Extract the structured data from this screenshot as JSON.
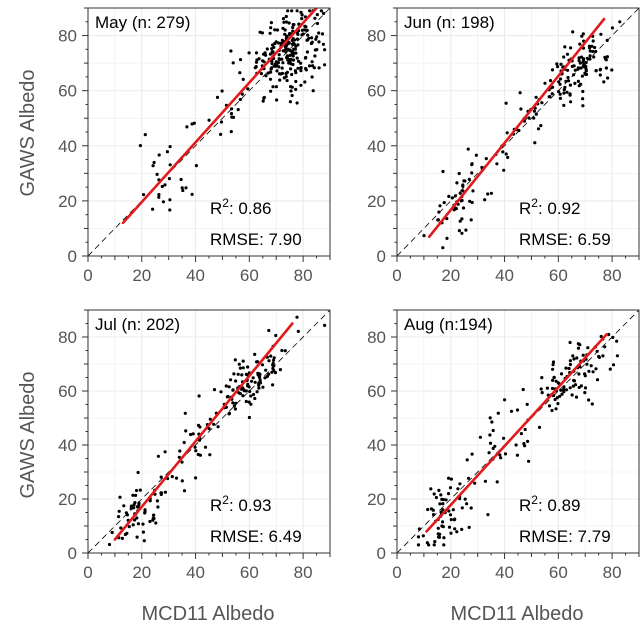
{
  "colors": {
    "fit": "#e31a1c",
    "points": "#000000",
    "grid": "#ebebeb",
    "frame": "#333333"
  },
  "xlabel": "MCD11 Albedo",
  "ylabel": "GAWS Albedo",
  "chart_data": [
    {
      "type": "scatter",
      "title": "May (n: 279)",
      "r2_label": "R",
      "r2_exp": "2",
      "r2_value": ": 0.86",
      "rmse": "RMSE: 7.90",
      "xlim": [
        0,
        90
      ],
      "ylim": [
        0,
        90
      ],
      "xticks": [
        "0",
        "20",
        "40",
        "60",
        "80"
      ],
      "yticks": [
        "0",
        "20",
        "40",
        "60",
        "80"
      ],
      "fit": {
        "x": [
          13,
          85
        ],
        "y": [
          12,
          90
        ]
      },
      "point_groups": [
        {
          "n": 220,
          "cx": 75,
          "cy": 75,
          "sx": 6,
          "sy": 7,
          "rho": 0.3
        },
        {
          "n": 30,
          "cx": 57,
          "cy": 58,
          "sx": 7,
          "sy": 8,
          "rho": 0.6
        },
        {
          "n": 18,
          "cx": 30,
          "cy": 23,
          "sx": 6,
          "sy": 4,
          "rho": 0.2
        },
        {
          "n": 11,
          "cx": 33,
          "cy": 42,
          "sx": 8,
          "sy": 8,
          "rho": 0.5
        }
      ]
    },
    {
      "type": "scatter",
      "title": "Jun (n: 198)",
      "r2_label": "R",
      "r2_exp": "2",
      "r2_value": ": 0.92",
      "rmse": "RMSE: 6.59",
      "xlim": [
        0,
        90
      ],
      "ylim": [
        0,
        90
      ],
      "xticks": [
        "0",
        "20",
        "40",
        "60",
        "80"
      ],
      "yticks": [
        "0",
        "20",
        "40",
        "60",
        "80"
      ],
      "fit": {
        "x": [
          12,
          77
        ],
        "y": [
          7,
          86
        ]
      },
      "point_groups": [
        {
          "n": 110,
          "cx": 67,
          "cy": 68,
          "sx": 6,
          "sy": 7,
          "rho": 0.6
        },
        {
          "n": 55,
          "cx": 25,
          "cy": 22,
          "sx": 6,
          "sy": 8,
          "rho": 0.6
        },
        {
          "n": 33,
          "cx": 48,
          "cy": 50,
          "sx": 6,
          "sy": 7,
          "rho": 0.7
        }
      ]
    },
    {
      "type": "scatter",
      "title": "Jul (n: 202)",
      "r2_label": "R",
      "r2_exp": "2",
      "r2_value": ": 0.93",
      "rmse": "RMSE: 6.49",
      "xlim": [
        0,
        90
      ],
      "ylim": [
        0,
        90
      ],
      "xticks": [
        "0",
        "20",
        "40",
        "60",
        "80"
      ],
      "yticks": [
        "0",
        "20",
        "40",
        "60",
        "80"
      ],
      "fit": {
        "x": [
          10,
          76
        ],
        "y": [
          5,
          85
        ]
      },
      "point_groups": [
        {
          "n": 110,
          "cx": 60,
          "cy": 63,
          "sx": 7,
          "sy": 8,
          "rho": 0.7
        },
        {
          "n": 60,
          "cx": 18,
          "cy": 15,
          "sx": 5,
          "sy": 6,
          "rho": 0.4
        },
        {
          "n": 32,
          "cx": 37,
          "cy": 38,
          "sx": 6,
          "sy": 8,
          "rho": 0.6
        }
      ]
    },
    {
      "type": "scatter",
      "title": "Aug (n:194)",
      "r2_label": "R",
      "r2_exp": "2",
      "r2_value": ": 0.89",
      "rmse": "RMSE: 7.79",
      "xlim": [
        0,
        90
      ],
      "ylim": [
        0,
        90
      ],
      "xticks": [
        "0",
        "20",
        "40",
        "60",
        "80"
      ],
      "yticks": [
        "0",
        "20",
        "40",
        "60",
        "80"
      ],
      "fit": {
        "x": [
          11,
          78
        ],
        "y": [
          8,
          81
        ]
      },
      "point_groups": [
        {
          "n": 95,
          "cx": 65,
          "cy": 65,
          "sx": 7,
          "sy": 7,
          "rho": 0.6
        },
        {
          "n": 65,
          "cx": 17,
          "cy": 14,
          "sx": 5,
          "sy": 7,
          "rho": 0.3
        },
        {
          "n": 34,
          "cx": 38,
          "cy": 40,
          "sx": 8,
          "sy": 10,
          "rho": 0.5
        }
      ]
    }
  ]
}
